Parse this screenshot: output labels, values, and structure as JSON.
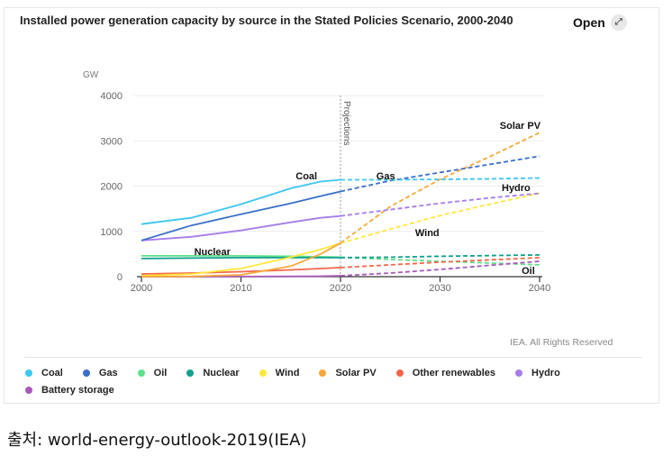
{
  "header": {
    "title": "Installed power generation capacity by source in the Stated Policies Scenario, 2000-2040",
    "open_label": "Open",
    "open_icon": "expand-icon"
  },
  "footer": {
    "rights": "IEA. All Rights Reserved",
    "source": "출처: world-energy-outlook-2019(IEA)"
  },
  "chart_data": {
    "type": "line",
    "title": "Installed power generation capacity by source in the Stated Policies Scenario, 2000-2040",
    "xlabel": "",
    "ylabel": "GW",
    "xlim": [
      2000,
      2040
    ],
    "ylim": [
      0,
      4000
    ],
    "x_ticks": [
      "2000",
      "2010",
      "2020",
      "2030",
      "2040"
    ],
    "y_ticks": [
      "0",
      "1000",
      "2000",
      "3000",
      "4000"
    ],
    "grid": true,
    "legend_position": "bottom",
    "projection_start": 2020,
    "projection_label": "Projections",
    "x": [
      2000,
      2005,
      2010,
      2015,
      2018,
      2020,
      2025,
      2030,
      2035,
      2040
    ],
    "series": [
      {
        "name": "Coal",
        "color": "#3ec6f0",
        "values": [
          1160,
          1300,
          1600,
          1950,
          2100,
          2140,
          2140,
          2150,
          2160,
          2180
        ]
      },
      {
        "name": "Gas",
        "color": "#3a6fc9",
        "values": [
          800,
          1130,
          1380,
          1620,
          1780,
          1880,
          2120,
          2300,
          2480,
          2660
        ]
      },
      {
        "name": "Oil",
        "color": "#5fe08a",
        "values": [
          460,
          460,
          460,
          450,
          440,
          430,
          380,
          340,
          300,
          260
        ]
      },
      {
        "name": "Nuclear",
        "color": "#12a08e",
        "values": [
          400,
          410,
          420,
          420,
          420,
          420,
          430,
          450,
          465,
          480
        ]
      },
      {
        "name": "Wind",
        "color": "#ffe83a",
        "values": [
          20,
          60,
          180,
          430,
          600,
          740,
          1050,
          1350,
          1600,
          1840
        ]
      },
      {
        "name": "Solar PV",
        "color": "#f7a93b",
        "values": [
          0,
          5,
          40,
          230,
          500,
          740,
          1550,
          2150,
          2650,
          3180
        ]
      },
      {
        "name": "Other renewables",
        "color": "#f2674a",
        "values": [
          60,
          80,
          110,
          150,
          180,
          200,
          260,
          320,
          370,
          420
        ]
      },
      {
        "name": "Hydro",
        "color": "#a67de8",
        "values": [
          800,
          880,
          1020,
          1200,
          1300,
          1340,
          1480,
          1620,
          1740,
          1840
        ]
      },
      {
        "name": "Battery storage",
        "color": "#a65bb8",
        "values": [
          0,
          0,
          2,
          5,
          10,
          20,
          80,
          160,
          250,
          340
        ]
      }
    ],
    "annotations": [
      "Coal",
      "Gas",
      "Nuclear",
      "Wind",
      "Solar PV",
      "Hydro",
      "Oil"
    ]
  }
}
